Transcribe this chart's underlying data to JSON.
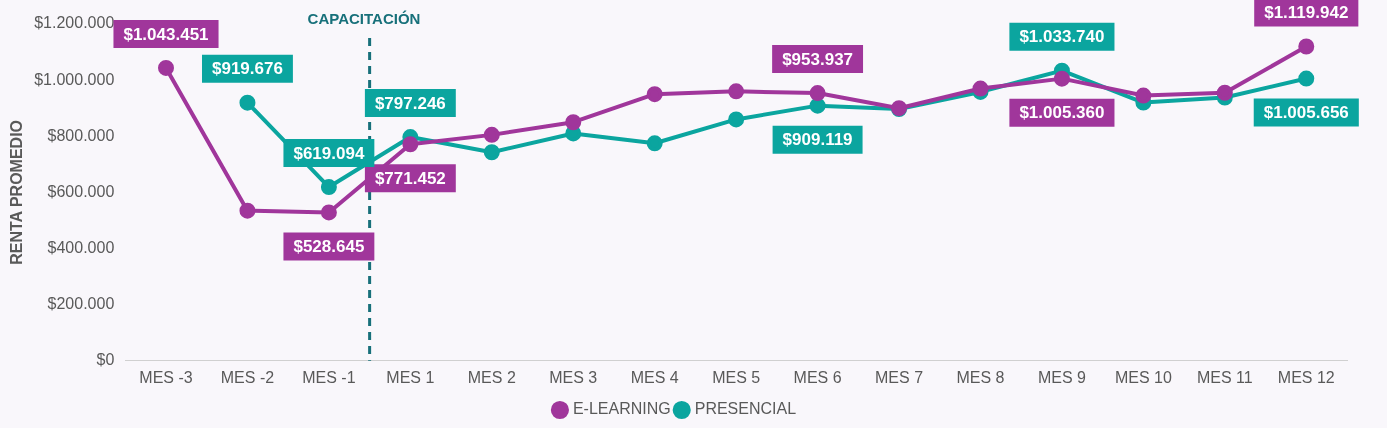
{
  "chart_data": {
    "type": "line",
    "categories": [
      "MES -3",
      "MES -2",
      "MES -1",
      "MES 1",
      "MES 2",
      "MES 3",
      "MES 4",
      "MES 5",
      "MES 6",
      "MES 7",
      "MES 8",
      "MES 9",
      "MES 10",
      "MES 11",
      "MES 12"
    ],
    "series": [
      {
        "name": "E-LEARNING",
        "color": "#a0369b",
        "values": [
          1043451,
          535000,
          528645,
          771452,
          805000,
          850000,
          950000,
          960000,
          953937,
          900000,
          970000,
          1005360,
          945000,
          955000,
          1119942
        ],
        "value_labels": [
          "$1.043.451",
          null,
          "$528.645",
          "$771.452",
          null,
          null,
          null,
          null,
          "$953.937",
          null,
          null,
          "$1.005.360",
          null,
          null,
          "$1.119.942"
        ]
      },
      {
        "name": "PRESENCIAL",
        "color": "#0ba59f",
        "values": [
          null,
          919676,
          619094,
          797246,
          743000,
          810000,
          775000,
          860000,
          909119,
          897000,
          958000,
          1033740,
          920000,
          938000,
          1005656
        ],
        "value_labels": [
          null,
          "$919.676",
          "$619.094",
          "$797.246",
          null,
          null,
          null,
          null,
          "$909.119",
          null,
          null,
          "$1.033.740",
          null,
          null,
          "$1.005.656"
        ]
      }
    ],
    "ylabel": "RENTA PROMEDIO",
    "ylim": [
      0,
      1200000
    ],
    "yticks": [
      {
        "value": 0,
        "label": "$0"
      },
      {
        "value": 200000,
        "label": "$200.000"
      },
      {
        "value": 400000,
        "label": "$400.000"
      },
      {
        "value": 600000,
        "label": "$600.000"
      },
      {
        "value": 800000,
        "label": "$800.000"
      },
      {
        "value": 1000000,
        "label": "$1.000.000"
      },
      {
        "value": 1200000,
        "label": "$1.200.000"
      }
    ],
    "ref_lines": [
      {
        "axis": "x",
        "value": "MES 1",
        "label": "CAPACITACIÓN",
        "color": "#17707a",
        "line_style": "dashed"
      }
    ],
    "grid": false,
    "legend": "bottom",
    "marker": "circle",
    "line_style": "solid"
  }
}
